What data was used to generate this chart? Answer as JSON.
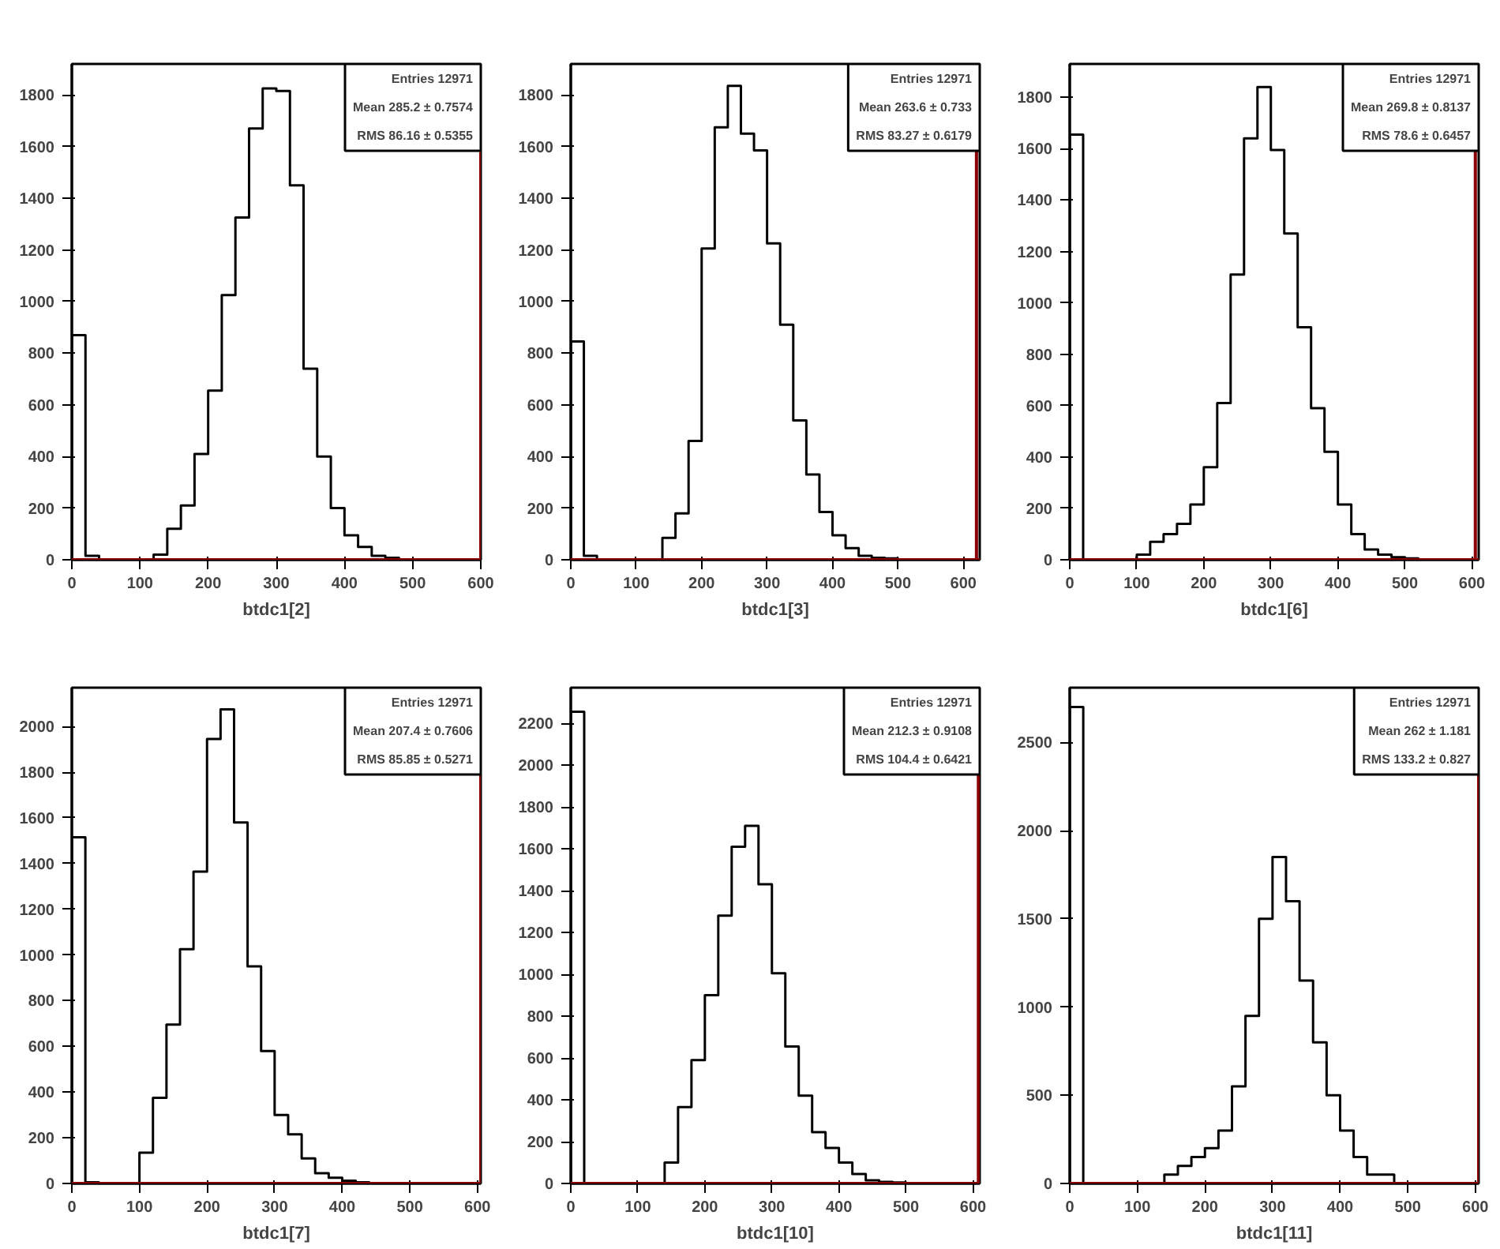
{
  "chart_data": [
    {
      "type": "histogram",
      "color": "#000000",
      "xlabel": "btdc1[2]",
      "bins": [
        0,
        20,
        40,
        60,
        80,
        100,
        120,
        140,
        160,
        180,
        200,
        220,
        240,
        260,
        280,
        300,
        320,
        340,
        360,
        380,
        400,
        420,
        440,
        460,
        480,
        500,
        520,
        540,
        560,
        580,
        600
      ],
      "values": [
        870,
        15,
        0,
        0,
        0,
        0,
        20,
        120,
        210,
        410,
        655,
        1025,
        1325,
        1670,
        1825,
        1815,
        1450,
        740,
        400,
        200,
        95,
        50,
        15,
        8,
        0,
        0,
        0,
        0,
        0,
        0
      ],
      "xlim": [
        0,
        600
      ],
      "ylim": [
        0,
        1920
      ],
      "xticks": [
        0,
        100,
        200,
        300,
        400,
        500,
        600
      ],
      "yticks": [
        0,
        200,
        400,
        600,
        800,
        1000,
        1200,
        1400,
        1600,
        1800
      ],
      "annotations": [
        "Entries 12971",
        "Mean 285.2 ± 0.7574",
        "RMS 86.16 ± 0.5355"
      ],
      "ref_lines": [
        {
          "axis": "y",
          "value": 0,
          "color": "#8b0000"
        },
        {
          "axis": "x",
          "value": 600,
          "color": "#8b0000"
        }
      ]
    },
    {
      "type": "histogram",
      "color": "#000000",
      "xlabel": "btdc1[3]",
      "bins": [
        0,
        20,
        40,
        60,
        80,
        100,
        120,
        140,
        160,
        180,
        200,
        220,
        240,
        260,
        280,
        300,
        320,
        340,
        360,
        380,
        400,
        420,
        440,
        460,
        480,
        500,
        520,
        540,
        560,
        580,
        600
      ],
      "values": [
        845,
        15,
        0,
        0,
        0,
        0,
        0,
        85,
        180,
        460,
        1205,
        1675,
        1835,
        1650,
        1585,
        1225,
        910,
        540,
        330,
        185,
        95,
        45,
        15,
        8,
        5,
        0,
        0,
        0,
        0,
        0
      ],
      "xlim": [
        0,
        625
      ],
      "ylim": [
        0,
        1920
      ],
      "xticks": [
        0,
        100,
        200,
        300,
        400,
        500,
        600
      ],
      "yticks": [
        0,
        200,
        400,
        600,
        800,
        1000,
        1200,
        1400,
        1600,
        1800
      ],
      "annotations": [
        "Entries 12971",
        "Mean 263.6 ± 0.733",
        "RMS 83.27 ± 0.6179"
      ],
      "ref_lines": [
        {
          "axis": "y",
          "value": 0,
          "color": "#8b0000"
        },
        {
          "axis": "x",
          "value": 620,
          "color": "#8b0000"
        }
      ]
    },
    {
      "type": "histogram",
      "color": "#000000",
      "xlabel": "btdc1[6]",
      "bins": [
        0,
        20,
        40,
        60,
        80,
        100,
        120,
        140,
        160,
        180,
        200,
        220,
        240,
        260,
        280,
        300,
        320,
        340,
        360,
        380,
        400,
        420,
        440,
        460,
        480,
        500,
        520,
        540,
        560,
        580,
        600
      ],
      "values": [
        1655,
        0,
        0,
        0,
        0,
        20,
        70,
        100,
        140,
        215,
        360,
        610,
        1110,
        1640,
        1840,
        1595,
        1270,
        905,
        590,
        420,
        215,
        100,
        40,
        20,
        10,
        5,
        0,
        0,
        0,
        0
      ],
      "xlim": [
        0,
        610
      ],
      "ylim": [
        0,
        1930
      ],
      "xticks": [
        0,
        100,
        200,
        300,
        400,
        500,
        600
      ],
      "yticks": [
        0,
        200,
        400,
        600,
        800,
        1000,
        1200,
        1400,
        1600,
        1800
      ],
      "annotations": [
        "Entries 12971",
        "Mean 269.8 ± 0.8137",
        "RMS 78.6 ± 0.6457"
      ],
      "ref_lines": [
        {
          "axis": "y",
          "value": 0,
          "color": "#8b0000"
        },
        {
          "axis": "x",
          "value": 605,
          "color": "#8b0000"
        }
      ]
    },
    {
      "type": "histogram",
      "color": "#000000",
      "xlabel": "btdc1[7]",
      "bins": [
        0,
        20,
        40,
        60,
        80,
        100,
        120,
        140,
        160,
        180,
        200,
        220,
        240,
        260,
        280,
        300,
        320,
        340,
        360,
        380,
        400,
        420,
        440,
        460,
        480,
        500,
        520,
        540,
        560,
        580,
        600
      ],
      "values": [
        1515,
        5,
        0,
        0,
        0,
        135,
        375,
        695,
        1025,
        1365,
        1945,
        2075,
        1580,
        950,
        580,
        300,
        215,
        110,
        45,
        25,
        12,
        5,
        0,
        0,
        0,
        0,
        0,
        0,
        0,
        0
      ],
      "xlim": [
        0,
        605
      ],
      "ylim": [
        0,
        2170
      ],
      "xticks": [
        0,
        100,
        200,
        300,
        400,
        500,
        600
      ],
      "yticks": [
        0,
        200,
        400,
        600,
        800,
        1000,
        1200,
        1400,
        1600,
        1800,
        2000
      ],
      "annotations": [
        "Entries 12971",
        "Mean 207.4 ± 0.7606",
        "RMS 85.85 ± 0.5271"
      ],
      "ref_lines": [
        {
          "axis": "y",
          "value": 0,
          "color": "#8b0000"
        },
        {
          "axis": "x",
          "value": 605,
          "color": "#8b0000"
        }
      ]
    },
    {
      "type": "histogram",
      "color": "#000000",
      "xlabel": "btdc1[10]",
      "bins": [
        0,
        20,
        40,
        60,
        80,
        100,
        120,
        140,
        160,
        180,
        200,
        220,
        240,
        260,
        280,
        300,
        320,
        340,
        360,
        380,
        400,
        420,
        440,
        460,
        480,
        500,
        520,
        540,
        560,
        580,
        600
      ],
      "values": [
        2255,
        0,
        0,
        0,
        0,
        0,
        0,
        100,
        365,
        590,
        900,
        1280,
        1610,
        1710,
        1430,
        1005,
        655,
        420,
        245,
        170,
        100,
        45,
        15,
        8,
        5,
        0,
        0,
        0,
        0,
        0
      ],
      "xlim": [
        0,
        610
      ],
      "ylim": [
        0,
        2370
      ],
      "xticks": [
        0,
        100,
        200,
        300,
        400,
        500,
        600
      ],
      "yticks": [
        0,
        200,
        400,
        600,
        800,
        1000,
        1200,
        1400,
        1600,
        1800,
        2000,
        2200
      ],
      "annotations": [
        "Entries 12971",
        "Mean 212.3 ± 0.9108",
        "RMS 104.4 ± 0.6421"
      ],
      "ref_lines": [
        {
          "axis": "y",
          "value": 0,
          "color": "#8b0000"
        },
        {
          "axis": "x",
          "value": 608,
          "color": "#8b0000"
        }
      ]
    },
    {
      "type": "histogram",
      "color": "#000000",
      "xlabel": "btdc1[11]",
      "bins": [
        0,
        20,
        40,
        60,
        80,
        100,
        120,
        140,
        160,
        180,
        200,
        220,
        240,
        260,
        280,
        300,
        320,
        340,
        360,
        380,
        400,
        420,
        440,
        460,
        480,
        500,
        520,
        540,
        560,
        580,
        600
      ],
      "values": [
        2700,
        0,
        0,
        0,
        0,
        0,
        0,
        50,
        100,
        150,
        200,
        300,
        550,
        950,
        1500,
        1850,
        1600,
        1150,
        800,
        500,
        300,
        150,
        50,
        50,
        0,
        0,
        0,
        0,
        0,
        0
      ],
      "xlim": [
        0,
        605
      ],
      "ylim": [
        0,
        2810
      ],
      "xticks": [
        0,
        100,
        200,
        300,
        400,
        500,
        600
      ],
      "yticks": [
        0,
        500,
        1000,
        1500,
        2000,
        2500
      ],
      "annotations": [
        "Entries 12971",
        "Mean 262 ± 1.181",
        "RMS 133.2 ± 0.827"
      ],
      "ref_lines": [
        {
          "axis": "y",
          "value": 0,
          "color": "#8b0000"
        },
        {
          "axis": "x",
          "value": 605,
          "color": "#8b0000"
        }
      ]
    }
  ]
}
